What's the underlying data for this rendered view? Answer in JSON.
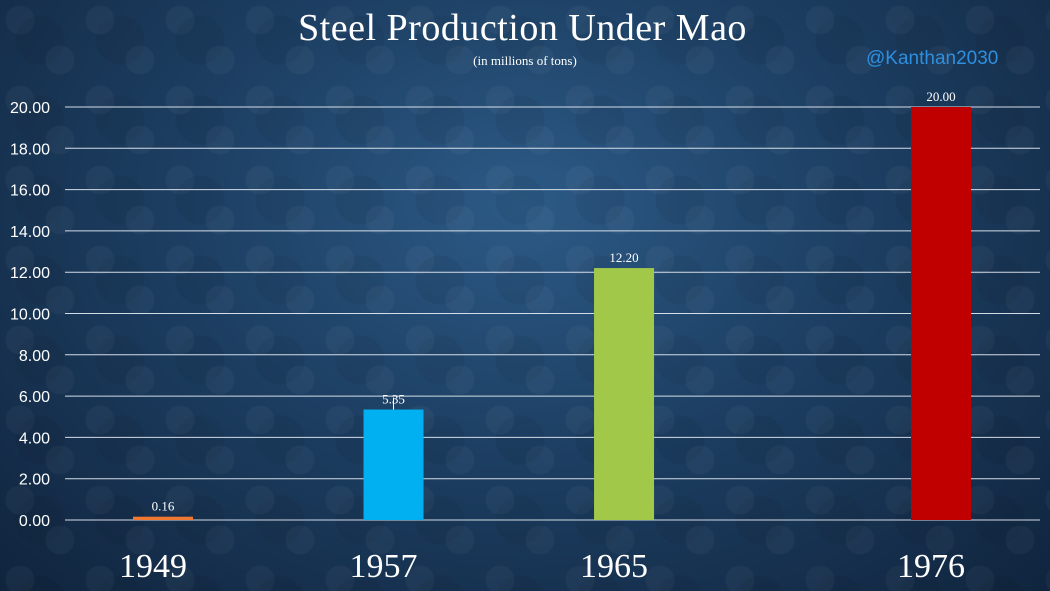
{
  "header": {
    "title": "Steel Production Under Mao",
    "subtitle": "(in millions of tons)",
    "handle": "@Kanthan2030"
  },
  "chart_data": {
    "type": "bar",
    "title": "Steel Production Under Mao",
    "subtitle": "(in millions of tons)",
    "x": [
      1949,
      1957,
      1965,
      1976
    ],
    "categories": [
      "1949",
      "1957",
      "1965",
      "1976"
    ],
    "values": [
      0.16,
      5.35,
      12.2,
      20.0
    ],
    "value_labels": [
      "0.16",
      "5.35",
      "12.20",
      "20.00"
    ],
    "colors": [
      "#f07830",
      "#00b0f0",
      "#a2c84a",
      "#c00000"
    ],
    "ylim": [
      0,
      20
    ],
    "yticks": [
      "0.00",
      "2.00",
      "4.00",
      "6.00",
      "8.00",
      "10.00",
      "12.00",
      "14.00",
      "16.00",
      "18.00",
      "20.00"
    ],
    "xlabel": "",
    "ylabel": "",
    "grid": true,
    "legend": "none"
  }
}
